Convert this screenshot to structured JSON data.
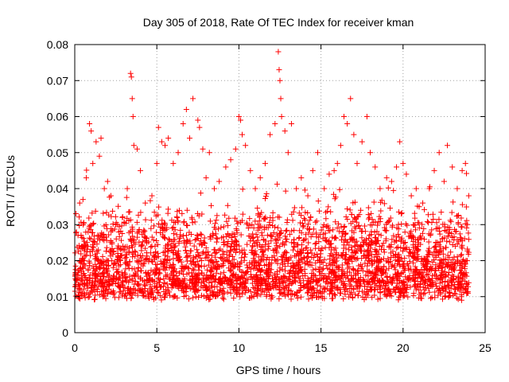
{
  "chart_data": {
    "type": "scatter",
    "title": "Day 305 of 2018, Rate Of TEC Index for receiver kman",
    "xlabel": "GPS time / hours",
    "ylabel": "ROTI / TECUs",
    "xlim": [
      0,
      25
    ],
    "ylim": [
      0,
      0.08
    ],
    "x_ticks": [
      0,
      5,
      10,
      15,
      20,
      25
    ],
    "y_ticks": [
      0,
      0.01,
      0.02,
      0.03,
      0.04,
      0.05,
      0.06,
      0.07,
      0.08
    ],
    "x_tick_labels": [
      "0",
      "5",
      "10",
      "15",
      "20",
      "25"
    ],
    "y_tick_labels": [
      "0",
      "0.01",
      "0.02",
      "0.03",
      "0.04",
      "0.05",
      "0.06",
      "0.07",
      "0.08"
    ],
    "grid": true,
    "marker": "+",
    "color": "#ff0000",
    "data_x_range": [
      0,
      24
    ],
    "series": [
      {
        "name": "ROTI",
        "points": [
          [
            0.2,
            0.027
          ],
          [
            0.3,
            0.036
          ],
          [
            0.5,
            0.037
          ],
          [
            0.7,
            0.043
          ],
          [
            0.9,
            0.058
          ],
          [
            1.0,
            0.056
          ],
          [
            1.1,
            0.047
          ],
          [
            1.3,
            0.053
          ],
          [
            1.5,
            0.049
          ],
          [
            1.6,
            0.054
          ],
          [
            1.8,
            0.04
          ],
          [
            2.0,
            0.042
          ],
          [
            2.2,
            0.038
          ],
          [
            2.5,
            0.03
          ],
          [
            2.9,
            0.032
          ],
          [
            3.2,
            0.04
          ],
          [
            3.4,
            0.072
          ],
          [
            3.45,
            0.071
          ],
          [
            3.5,
            0.065
          ],
          [
            3.55,
            0.06
          ],
          [
            3.6,
            0.052
          ],
          [
            3.8,
            0.051
          ],
          [
            4.0,
            0.045
          ],
          [
            4.3,
            0.036
          ],
          [
            4.7,
            0.038
          ],
          [
            5.0,
            0.047
          ],
          [
            5.1,
            0.057
          ],
          [
            5.3,
            0.053
          ],
          [
            5.5,
            0.052
          ],
          [
            5.7,
            0.054
          ],
          [
            6.0,
            0.047
          ],
          [
            6.3,
            0.05
          ],
          [
            6.6,
            0.058
          ],
          [
            6.8,
            0.062
          ],
          [
            7.0,
            0.054
          ],
          [
            7.2,
            0.065
          ],
          [
            7.5,
            0.059
          ],
          [
            7.6,
            0.057
          ],
          [
            7.8,
            0.051
          ],
          [
            8.0,
            0.043
          ],
          [
            8.2,
            0.05
          ],
          [
            8.5,
            0.04
          ],
          [
            8.8,
            0.042
          ],
          [
            9.2,
            0.046
          ],
          [
            9.5,
            0.048
          ],
          [
            9.8,
            0.051
          ],
          [
            10.0,
            0.06
          ],
          [
            10.1,
            0.059
          ],
          [
            10.2,
            0.055
          ],
          [
            10.4,
            0.052
          ],
          [
            10.7,
            0.045
          ],
          [
            11.0,
            0.04
          ],
          [
            11.3,
            0.043
          ],
          [
            11.6,
            0.047
          ],
          [
            11.9,
            0.055
          ],
          [
            12.2,
            0.058
          ],
          [
            12.4,
            0.078
          ],
          [
            12.45,
            0.073
          ],
          [
            12.5,
            0.07
          ],
          [
            12.55,
            0.065
          ],
          [
            12.6,
            0.06
          ],
          [
            12.8,
            0.056
          ],
          [
            13.0,
            0.05
          ],
          [
            13.2,
            0.058
          ],
          [
            13.5,
            0.04
          ],
          [
            13.8,
            0.043
          ],
          [
            14.2,
            0.038
          ],
          [
            14.5,
            0.045
          ],
          [
            14.8,
            0.05
          ],
          [
            15.2,
            0.04
          ],
          [
            15.5,
            0.044
          ],
          [
            15.8,
            0.045
          ],
          [
            16.0,
            0.047
          ],
          [
            16.2,
            0.052
          ],
          [
            16.4,
            0.06
          ],
          [
            16.6,
            0.058
          ],
          [
            16.8,
            0.065
          ],
          [
            17.0,
            0.055
          ],
          [
            17.2,
            0.047
          ],
          [
            17.5,
            0.053
          ],
          [
            17.8,
            0.06
          ],
          [
            18.0,
            0.05
          ],
          [
            18.3,
            0.046
          ],
          [
            18.6,
            0.04
          ],
          [
            19.0,
            0.043
          ],
          [
            19.3,
            0.042
          ],
          [
            19.6,
            0.046
          ],
          [
            19.8,
            0.053
          ],
          [
            20.0,
            0.047
          ],
          [
            20.2,
            0.044
          ],
          [
            20.5,
            0.038
          ],
          [
            20.8,
            0.04
          ],
          [
            21.2,
            0.036
          ],
          [
            21.6,
            0.04
          ],
          [
            21.9,
            0.045
          ],
          [
            22.2,
            0.05
          ],
          [
            22.5,
            0.042
          ],
          [
            22.7,
            0.052
          ],
          [
            23.0,
            0.046
          ],
          [
            23.3,
            0.04
          ],
          [
            23.6,
            0.045
          ],
          [
            23.8,
            0.047
          ],
          [
            24.0,
            0.038
          ]
        ]
      }
    ]
  }
}
